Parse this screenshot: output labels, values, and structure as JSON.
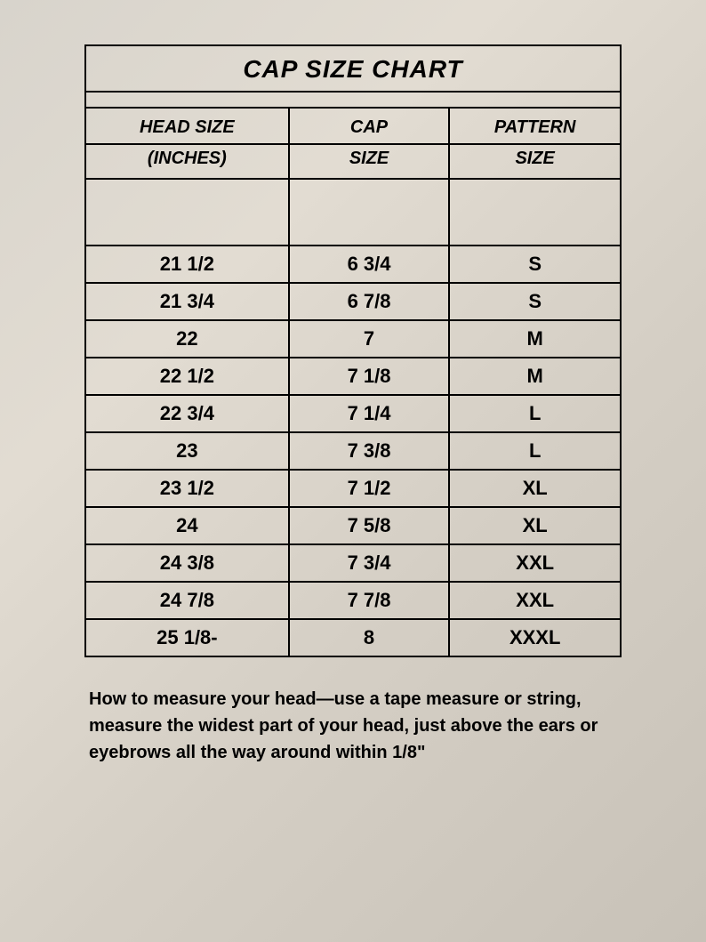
{
  "chart": {
    "title": "CAP SIZE CHART",
    "columns": {
      "col1_line1": "HEAD SIZE",
      "col1_line2": "(INCHES)",
      "col2_line1": "CAP",
      "col2_line2": "SIZE",
      "col3_line1": "PATTERN",
      "col3_line2": "SIZE"
    },
    "rows": [
      {
        "head": "21 1/2",
        "cap": "6 3/4",
        "pattern": "S"
      },
      {
        "head": "21 3/4",
        "cap": "6 7/8",
        "pattern": "S"
      },
      {
        "head": "22",
        "cap": "7",
        "pattern": "M"
      },
      {
        "head": "22 1/2",
        "cap": "7 1/8",
        "pattern": "M"
      },
      {
        "head": "22 3/4",
        "cap": "7 1/4",
        "pattern": "L"
      },
      {
        "head": "23",
        "cap": "7 3/8",
        "pattern": "L"
      },
      {
        "head": "23 1/2",
        "cap": "7 1/2",
        "pattern": "XL"
      },
      {
        "head": "24",
        "cap": "7 5/8",
        "pattern": "XL"
      },
      {
        "head": "24 3/8",
        "cap": "7 3/4",
        "pattern": "XXL"
      },
      {
        "head": "24 7/8",
        "cap": "7 7/8",
        "pattern": "XXL"
      },
      {
        "head": "25 1/8-",
        "cap": "8",
        "pattern": "XXXL"
      }
    ],
    "column_widths": [
      "38%",
      "30%",
      "32%"
    ],
    "border_color": "#000000",
    "text_color": "#000000",
    "background_gradient": [
      "#d8d4cc",
      "#e2dcd2",
      "#d5cfc5",
      "#c8c2b8"
    ],
    "title_fontsize": 28,
    "header_fontsize": 20,
    "data_fontsize": 22,
    "font_family": "Comic Sans MS"
  },
  "instructions": {
    "text": "How   to measure your head—use a tape measure or string, measure the widest part of your head, just above the ears or eyebrows all the way around within 1/8\"",
    "fontsize": 20
  }
}
